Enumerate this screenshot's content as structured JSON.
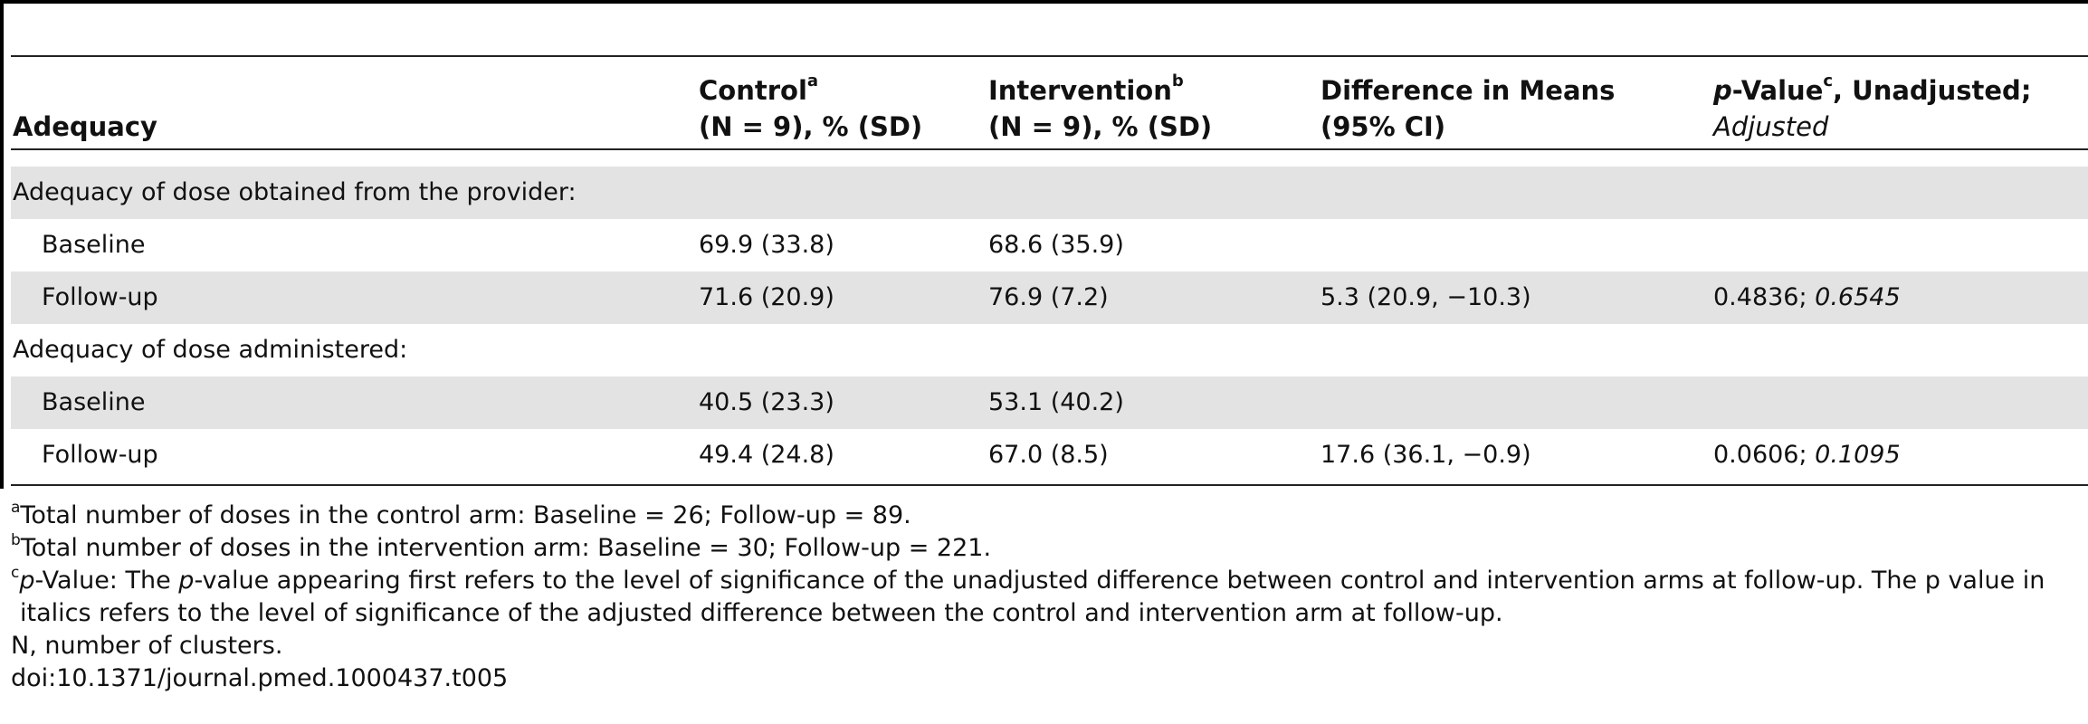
{
  "table": {
    "header": {
      "adequacy": "Adequacy",
      "control": {
        "main": "Control",
        "sup": "a",
        "sub": "(N = 9), % (SD)"
      },
      "intervention": {
        "main": "Intervention",
        "sup": "b",
        "sub": "(N = 9), % (SD)"
      },
      "difference": {
        "main": "Difference in Means",
        "sub": "(95% CI)"
      },
      "pvalue": {
        "p": "p",
        "main": "-Value",
        "sup": "c",
        "after": ", Unadjusted;",
        "adjusted": "Adjusted"
      }
    },
    "sections": [
      {
        "title": "Adequacy of dose obtained from the provider:",
        "rows": [
          {
            "label": "Baseline",
            "control": "69.9 (33.8)",
            "intervention": "68.6 (35.9)",
            "difference": "",
            "p_unadjusted": "",
            "p_adjusted": ""
          },
          {
            "label": "Follow-up",
            "control": "71.6 (20.9)",
            "intervention": "76.9 (7.2)",
            "difference": "5.3 (20.9, −10.3)",
            "p_unadjusted": "0.4836;",
            "p_adjusted": "0.6545"
          }
        ]
      },
      {
        "title": "Adequacy of dose administered:",
        "rows": [
          {
            "label": "Baseline",
            "control": "40.5 (23.3)",
            "intervention": "53.1 (40.2)",
            "difference": "",
            "p_unadjusted": "",
            "p_adjusted": ""
          },
          {
            "label": "Follow-up",
            "control": "49.4 (24.8)",
            "intervention": "67.0 (8.5)",
            "difference": "17.6 (36.1, −0.9)",
            "p_unadjusted": "0.0606;",
            "p_adjusted": "0.1095"
          }
        ]
      }
    ]
  },
  "footnotes": {
    "a": {
      "mark": "a",
      "text": "Total number of doses in the control arm: Baseline = 26; Follow-up = 89."
    },
    "b": {
      "mark": "b",
      "text": "Total number of doses in the intervention arm: Baseline = 30; Follow-up = 221."
    },
    "c": {
      "mark": "c",
      "p1": "p",
      "t1": "-Value: The ",
      "p2": "p",
      "t2": "-value appearing first refers to the level of significance of the unadjusted difference between control and intervention arms at follow-up. The p value in",
      "line2": "italics refers to the level of significance of the adjusted difference between the control and intervention arm at follow-up."
    },
    "n": "N, number of clusters.",
    "doi": "doi:10.1371/journal.pmed.1000437.t005"
  }
}
